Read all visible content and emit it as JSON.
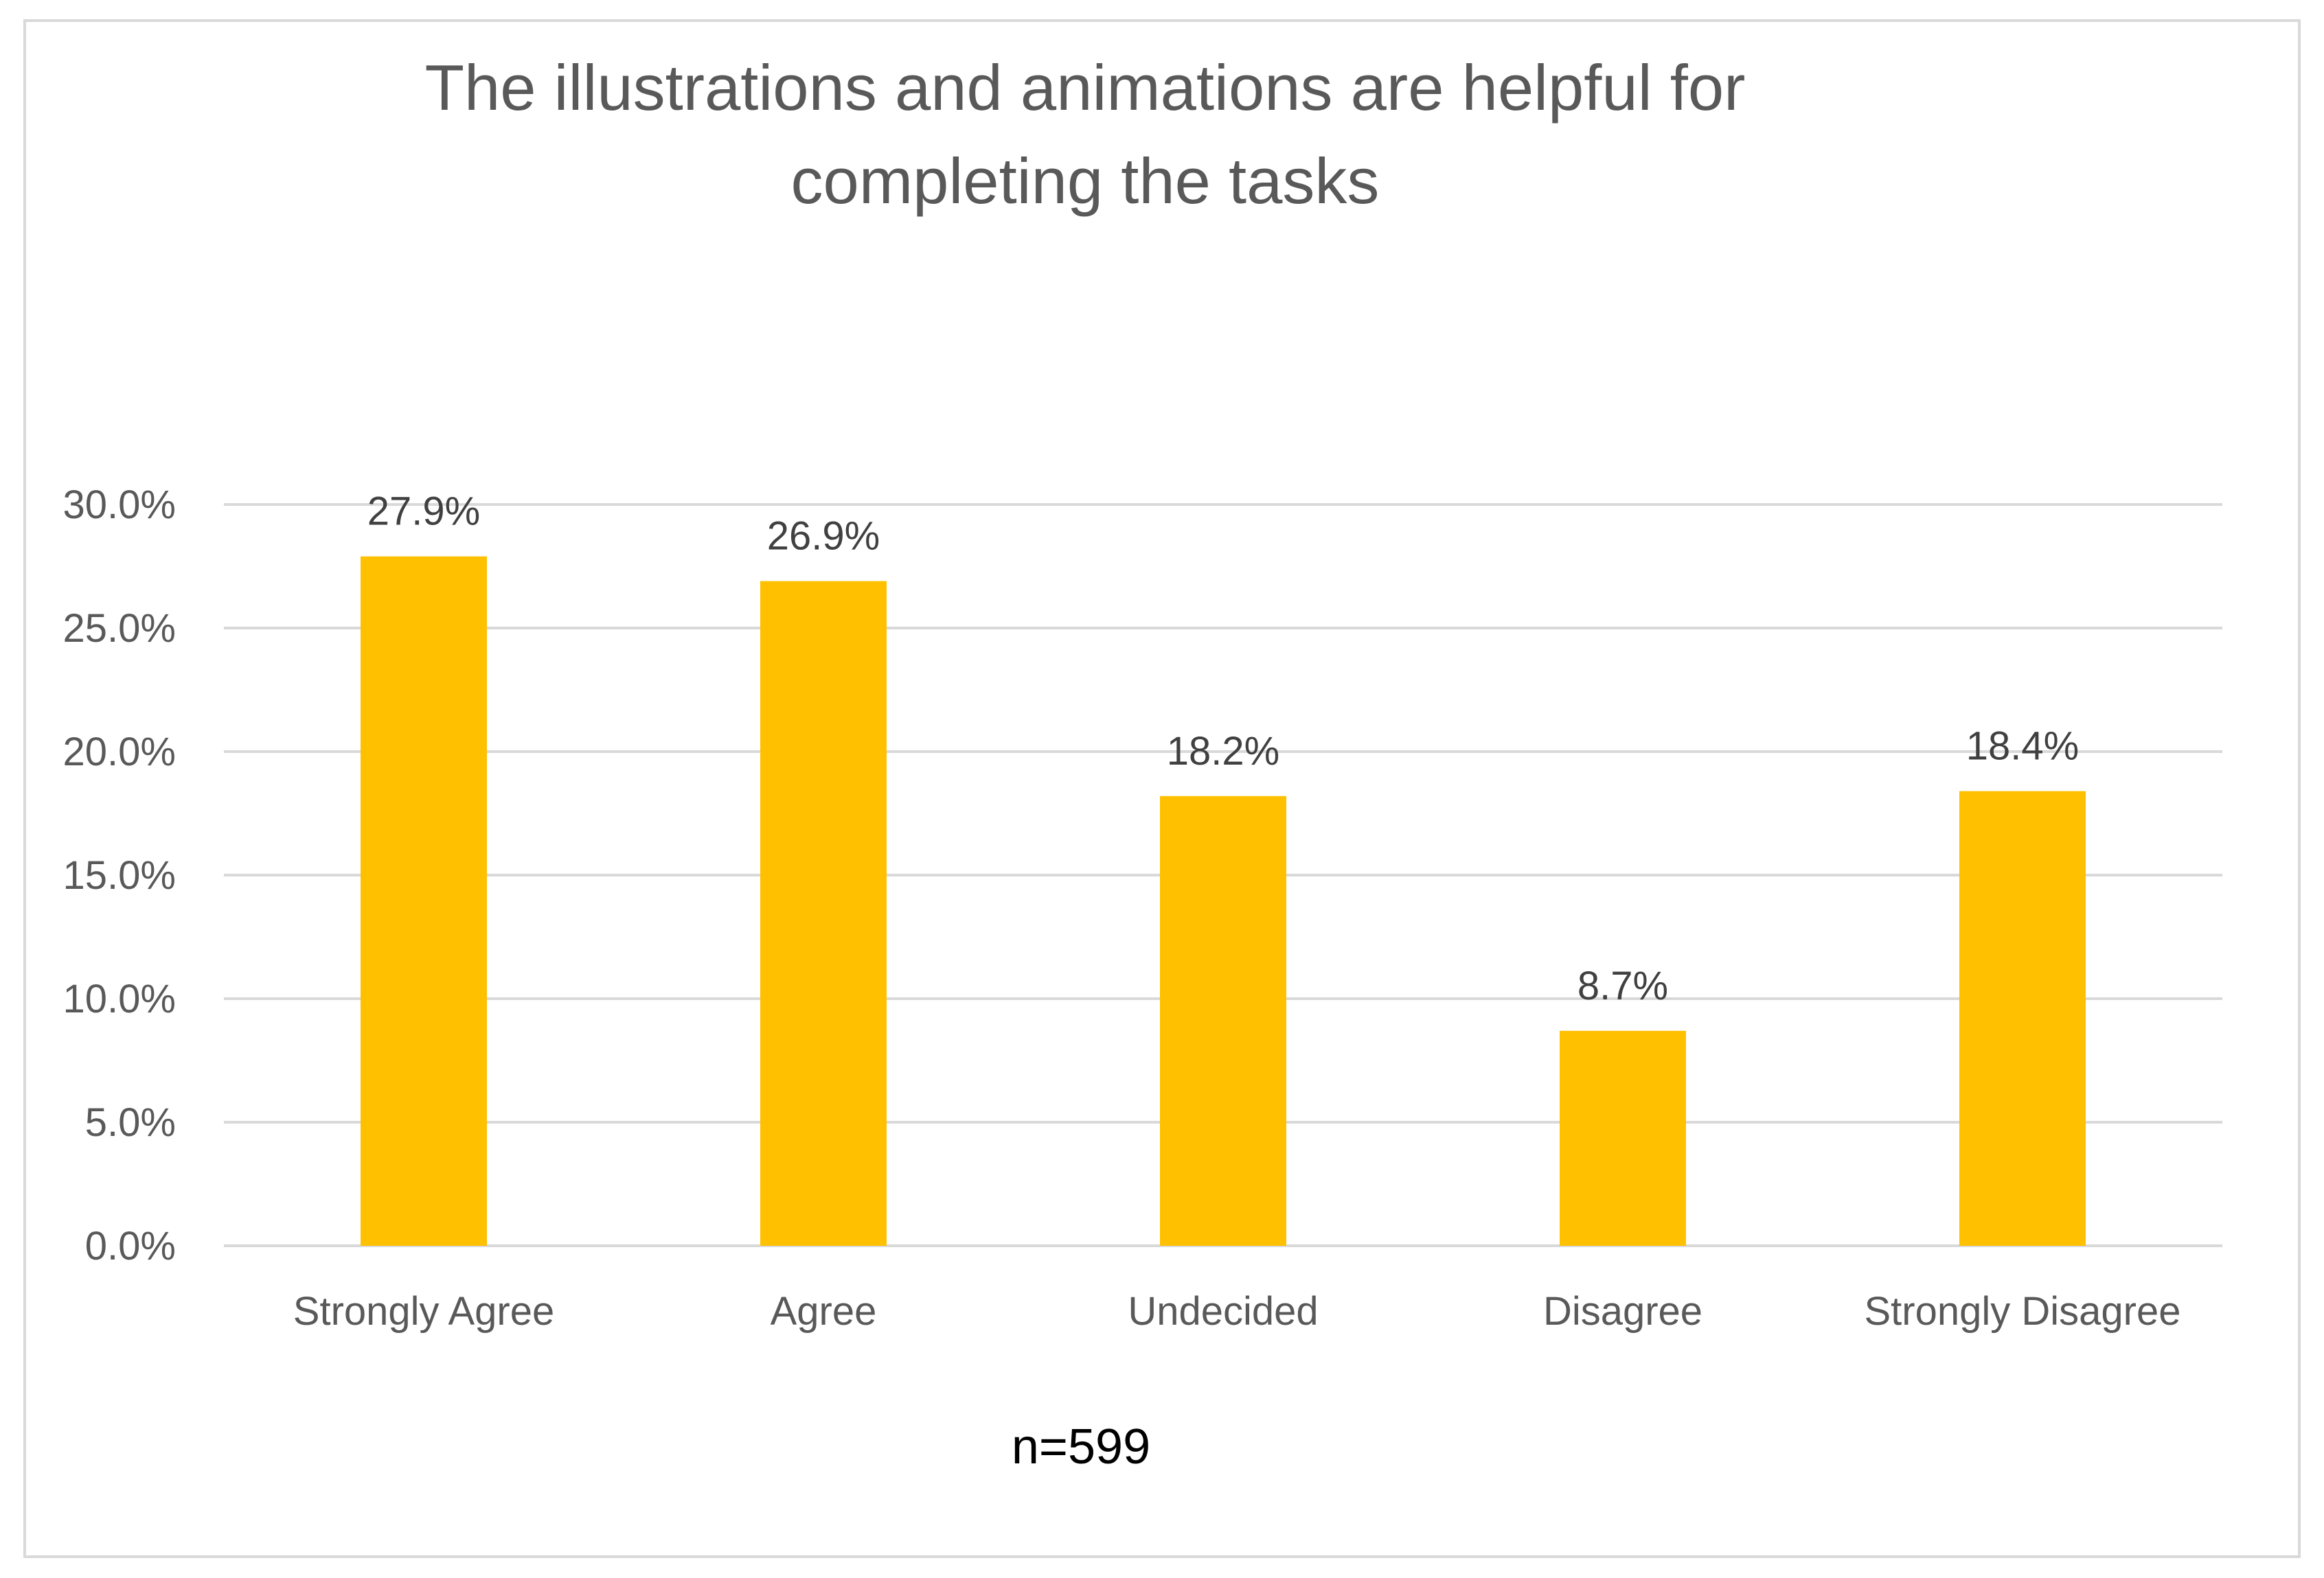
{
  "chart_data": {
    "type": "bar",
    "title": "The illustrations and animations are helpful for completing the tasks",
    "title_lines": [
      "The illustrations and animations are helpful for",
      "completing the tasks"
    ],
    "categories": [
      "Strongly Agree",
      "Agree",
      "Undecided",
      "Disagree",
      "Strongly Disagree"
    ],
    "values": [
      27.9,
      26.9,
      18.2,
      8.7,
      18.4
    ],
    "data_labels": [
      "27.9%",
      "26.9%",
      "18.2%",
      "8.7%",
      "18.4%"
    ],
    "y_ticks": [
      0,
      5,
      10,
      15,
      20,
      25,
      30
    ],
    "y_tick_labels": [
      "0.0%",
      "5.0%",
      "10.0%",
      "15.0%",
      "20.0%",
      "25.0%",
      "30.0%"
    ],
    "ylim": [
      0,
      30
    ],
    "xlabel": "",
    "ylabel": "",
    "grid": true,
    "legend": "none",
    "bar_color": "#FFC000",
    "gridline_color": "#D9D9D9",
    "note": "n=599"
  }
}
